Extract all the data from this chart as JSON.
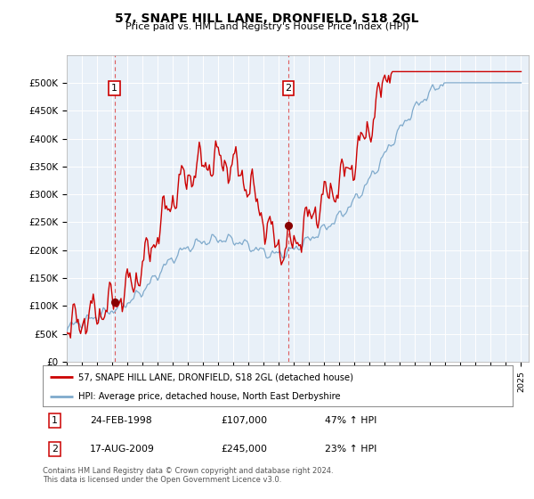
{
  "title": "57, SNAPE HILL LANE, DRONFIELD, S18 2GL",
  "subtitle": "Price paid vs. HM Land Registry's House Price Index (HPI)",
  "ylim": [
    0,
    550000
  ],
  "yticks": [
    0,
    50000,
    100000,
    150000,
    200000,
    250000,
    300000,
    350000,
    400000,
    450000,
    500000
  ],
  "ytick_labels": [
    "£0",
    "£50K",
    "£100K",
    "£150K",
    "£200K",
    "£250K",
    "£300K",
    "£350K",
    "£400K",
    "£450K",
    "£500K"
  ],
  "xmin": 1995,
  "xmax": 2025,
  "sale1_date": 1998.15,
  "sale1_price": 107000,
  "sale2_date": 2009.63,
  "sale2_price": 245000,
  "sale1_text": "24-FEB-1998",
  "sale1_amount": "£107,000",
  "sale1_hpi": "47% ↑ HPI",
  "sale2_text": "17-AUG-2009",
  "sale2_amount": "£245,000",
  "sale2_hpi": "23% ↑ HPI",
  "line1_color": "#cc0000",
  "line2_color": "#7faacc",
  "vline_color": "#dd4444",
  "marker_color": "#880000",
  "label_box_color": "#cc0000",
  "legend1_label": "57, SNAPE HILL LANE, DRONFIELD, S18 2GL (detached house)",
  "legend2_label": "HPI: Average price, detached house, North East Derbyshire",
  "footer": "Contains HM Land Registry data © Crown copyright and database right 2024.\nThis data is licensed under the Open Government Licence v3.0.",
  "background_color": "#ffffff",
  "plot_bg_color": "#e8f0f8",
  "grid_color": "#ffffff"
}
